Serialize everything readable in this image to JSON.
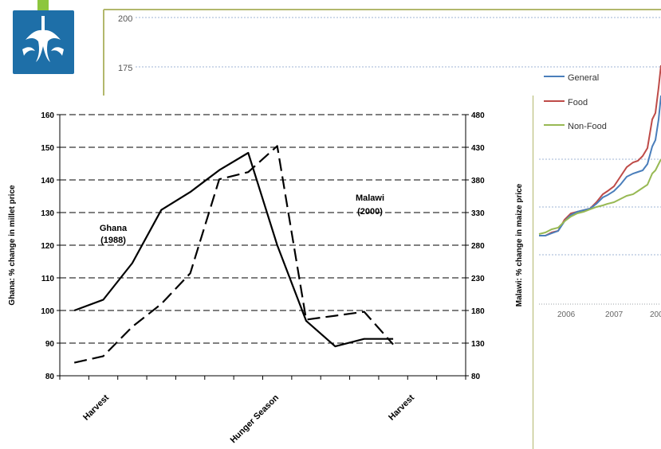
{
  "chart_data": [
    {
      "type": "line",
      "title": "",
      "x": [
        "Harvest",
        "",
        "",
        "",
        "",
        "",
        "",
        "",
        "",
        "",
        "",
        "",
        "",
        ""
      ],
      "x_tick_labels": [
        "Harvest",
        "Hunger Season",
        "Harvest"
      ],
      "ylabel": "Ghana: % change in millet price",
      "y2label": "Malawi: % change in maize price",
      "ylim": [
        80,
        160
      ],
      "y2lim": [
        80,
        480
      ],
      "y_ticks": [
        "80",
        "90",
        "100",
        "110",
        "120",
        "130",
        "140",
        "150",
        "160"
      ],
      "y2_ticks": [
        "80",
        "130",
        "180",
        "230",
        "280",
        "330",
        "380",
        "430",
        "480"
      ],
      "grid": "horizontal-dashed",
      "series": [
        {
          "name": "Ghana (1988)",
          "label_line1": "Ghana",
          "label_line2": "(1988)",
          "axis": "left",
          "style": "solid",
          "color": "#000000",
          "points": [
            [
              0,
              100
            ],
            [
              1,
              103.3
            ],
            [
              2,
              114.5
            ],
            [
              3,
              130.8
            ],
            [
              4,
              136.3
            ],
            [
              5,
              143
            ],
            [
              6,
              148.3
            ],
            [
              7,
              120
            ],
            [
              8,
              96.8
            ],
            [
              9,
              89
            ],
            [
              10,
              91.3
            ],
            [
              11,
              91.3
            ]
          ]
        },
        {
          "name": "Malawi (2000)",
          "label_line1": "Malawi",
          "label_line2": "(2000)",
          "axis": "right",
          "style": "dashed",
          "color": "#000000",
          "points": [
            [
              0,
              100
            ],
            [
              1,
              110
            ],
            [
              2,
              155
            ],
            [
              3,
              190
            ],
            [
              4,
              237
            ],
            [
              5,
              381
            ],
            [
              6,
              392
            ],
            [
              7,
              432
            ],
            [
              8,
              166
            ],
            [
              9,
              172
            ],
            [
              10,
              178
            ],
            [
              11,
              128
            ]
          ]
        }
      ]
    },
    {
      "type": "line",
      "title": "",
      "partial": true,
      "y_ticks": [
        "200",
        "175"
      ],
      "x_ticks": [
        "2006",
        "2007",
        "200"
      ],
      "grid": "horizontal-dotted",
      "series": [
        {
          "name": "General",
          "color": "#4a7ebb"
        },
        {
          "name": "Food",
          "color": "#be4b48"
        },
        {
          "name": "Non-Food",
          "color": "#98b954"
        }
      ]
    }
  ],
  "colors": {
    "logo": "#1e6fa8",
    "logo_accent": "#8cc63e",
    "frame": "#b2b86c"
  }
}
